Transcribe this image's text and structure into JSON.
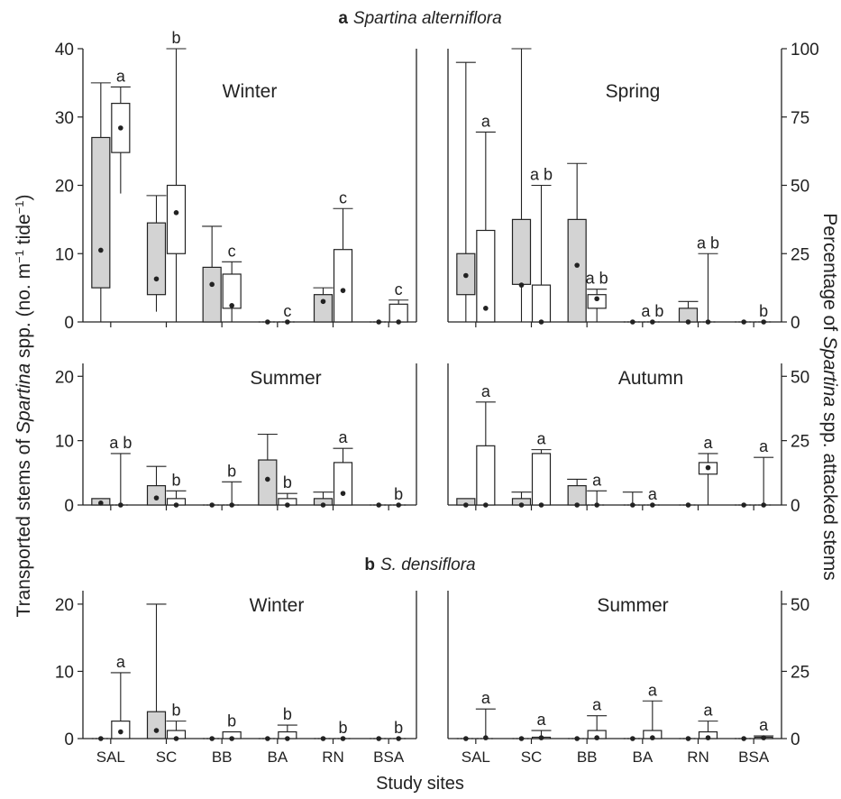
{
  "figure": {
    "section_a": {
      "letter": "a",
      "title": "Spartina alterniflora"
    },
    "section_b": {
      "letter": "b",
      "title": "S. densiflora"
    },
    "ylabel_left_parts": [
      "Transported stems of ",
      "Spartina",
      " spp. (no. m",
      "−1",
      " tide",
      "−1",
      ")"
    ],
    "ylabel_right_parts": [
      "Percentage of ",
      "Spartina",
      " spp. attacked stems"
    ],
    "xlabel": "Study sites",
    "colors": {
      "transported_box": "#d3d3d3",
      "attacked_box": "#ffffff",
      "stroke": "#222222"
    }
  },
  "chart_data": [
    {
      "type": "box",
      "title": "Winter",
      "section": "a",
      "categories": [
        "SAL",
        "SC",
        "BB",
        "BA",
        "RN",
        "BSA"
      ],
      "left_axis": {
        "label": "Transported stems",
        "ylim": [
          0,
          40
        ],
        "ticks": [
          0,
          10,
          20,
          30,
          40
        ]
      },
      "right_axis": {
        "label": "Percentage attacked",
        "ylim": [
          0,
          100
        ],
        "ticks": [
          0,
          25,
          50,
          75,
          100
        ]
      },
      "series": [
        {
          "name": "Transported stems",
          "axis": "left",
          "fill": "#d3d3d3",
          "boxes": [
            {
              "min": 0,
              "q1": 5,
              "q3": 27,
              "max": 35,
              "mean": 10.5
            },
            {
              "min": 1.5,
              "q1": 4,
              "q3": 14.5,
              "max": 18.5,
              "mean": 6.3
            },
            {
              "min": 0,
              "q1": 0,
              "q3": 8,
              "max": 14,
              "mean": 5.5
            },
            {
              "min": 0,
              "q1": 0,
              "q3": 0,
              "max": 0,
              "mean": 0
            },
            {
              "min": 0,
              "q1": 0,
              "q3": 4,
              "max": 5,
              "mean": 3
            },
            {
              "min": 0,
              "q1": 0,
              "q3": 0,
              "max": 0,
              "mean": 0
            }
          ]
        },
        {
          "name": "Attacked stems (%)",
          "axis": "right",
          "fill": "#ffffff",
          "boxes": [
            {
              "min": 47,
              "q1": 62,
              "q3": 80,
              "max": 86,
              "mean": 71
            },
            {
              "min": 0,
              "q1": 25,
              "q3": 50,
              "max": 100,
              "mean": 40
            },
            {
              "min": 0,
              "q1": 5,
              "q3": 17.5,
              "max": 22,
              "mean": 6
            },
            {
              "min": 0,
              "q1": 0,
              "q3": 0,
              "max": 0,
              "mean": 0
            },
            {
              "min": 0,
              "q1": 0,
              "q3": 26.5,
              "max": 41.5,
              "mean": 11.5
            },
            {
              "min": 0,
              "q1": 0,
              "q3": 6.5,
              "max": 8,
              "mean": 0
            }
          ],
          "letters": [
            "a",
            "b",
            "c",
            "c",
            "c",
            "c"
          ]
        }
      ]
    },
    {
      "type": "box",
      "title": "Spring",
      "section": "a",
      "categories": [
        "SAL",
        "SC",
        "BB",
        "BA",
        "RN",
        "BSA"
      ],
      "left_axis": {
        "label": "Transported stems",
        "ylim": [
          0,
          40
        ],
        "ticks": [
          0,
          10,
          20,
          30,
          40
        ]
      },
      "right_axis": {
        "label": "Percentage attacked",
        "ylim": [
          0,
          100
        ],
        "ticks": [
          0,
          25,
          50,
          75,
          100
        ]
      },
      "series": [
        {
          "name": "Transported stems",
          "axis": "left",
          "fill": "#d3d3d3",
          "boxes": [
            {
              "min": 0,
              "q1": 4,
              "q3": 10,
              "max": 38,
              "mean": 6.8
            },
            {
              "min": 0,
              "q1": 5.5,
              "q3": 15,
              "max": 40,
              "mean": 5.4
            },
            {
              "min": 0,
              "q1": 0,
              "q3": 15,
              "max": 23.2,
              "mean": 8.3
            },
            {
              "min": 0,
              "q1": 0,
              "q3": 0,
              "max": 0,
              "mean": 0
            },
            {
              "min": 0,
              "q1": 0,
              "q3": 2,
              "max": 3,
              "mean": 0
            },
            {
              "min": 0,
              "q1": 0,
              "q3": 0,
              "max": 0,
              "mean": 0
            }
          ]
        },
        {
          "name": "Attacked stems (%)",
          "axis": "right",
          "fill": "#ffffff",
          "boxes": [
            {
              "min": 0,
              "q1": 0,
              "q3": 33.5,
              "max": 69.5,
              "mean": 5
            },
            {
              "min": 0,
              "q1": 0,
              "q3": 13.5,
              "max": 50,
              "mean": 0
            },
            {
              "min": 0,
              "q1": 5,
              "q3": 10,
              "max": 12,
              "mean": 8.5
            },
            {
              "min": 0,
              "q1": 0,
              "q3": 0,
              "max": 0,
              "mean": 0
            },
            {
              "min": 0,
              "q1": 0,
              "q3": 0,
              "max": 25,
              "mean": 0
            },
            {
              "min": 0,
              "q1": 0,
              "q3": 0,
              "max": 0,
              "mean": 0
            }
          ],
          "letters": [
            "a",
            "a b",
            "a b",
            "a b",
            "a b",
            "b"
          ]
        }
      ]
    },
    {
      "type": "box",
      "title": "Summer",
      "section": "a",
      "categories": [
        "SAL",
        "SC",
        "BB",
        "BA",
        "RN",
        "BSA"
      ],
      "left_axis": {
        "label": "Transported stems",
        "ylim": [
          0,
          22
        ],
        "ticks": [
          0,
          10,
          20
        ]
      },
      "right_axis": {
        "label": "Percentage attacked",
        "ylim": [
          0,
          55
        ],
        "ticks": [
          0,
          25,
          50
        ]
      },
      "series": [
        {
          "name": "Transported stems",
          "axis": "left",
          "fill": "#d3d3d3",
          "boxes": [
            {
              "min": 0,
              "q1": 0,
              "q3": 1,
              "max": 1,
              "mean": 0.3
            },
            {
              "min": 0,
              "q1": 0,
              "q3": 3,
              "max": 6,
              "mean": 1.1
            },
            {
              "min": 0,
              "q1": 0,
              "q3": 0,
              "max": 0,
              "mean": 0
            },
            {
              "min": 0,
              "q1": 0,
              "q3": 7,
              "max": 11,
              "mean": 4
            },
            {
              "min": 0,
              "q1": 0,
              "q3": 1,
              "max": 2,
              "mean": 0
            },
            {
              "min": 0,
              "q1": 0,
              "q3": 0,
              "max": 0,
              "mean": 0
            }
          ]
        },
        {
          "name": "Attacked stems (%)",
          "axis": "right",
          "fill": "#ffffff",
          "boxes": [
            {
              "min": 0,
              "q1": 0,
              "q3": 0,
              "max": 20,
              "mean": 0
            },
            {
              "min": 0,
              "q1": 0,
              "q3": 2.5,
              "max": 5.5,
              "mean": 0
            },
            {
              "min": 0,
              "q1": 0,
              "q3": 0,
              "max": 9,
              "mean": 0
            },
            {
              "min": 0,
              "q1": 0,
              "q3": 2.5,
              "max": 4.5,
              "mean": 0
            },
            {
              "min": 0,
              "q1": 0,
              "q3": 16.5,
              "max": 22,
              "mean": 4.5
            },
            {
              "min": 0,
              "q1": 0,
              "q3": 0,
              "max": 0,
              "mean": 0
            }
          ],
          "letters": [
            "a b",
            "b",
            "b",
            "b",
            "a",
            "b"
          ]
        }
      ]
    },
    {
      "type": "box",
      "title": "Autumn",
      "section": "a",
      "categories": [
        "SAL",
        "SC",
        "BB",
        "BA",
        "RN",
        "BSA"
      ],
      "left_axis": {
        "label": "Transported stems",
        "ylim": [
          0,
          22
        ],
        "ticks": [
          0,
          10,
          20
        ]
      },
      "right_axis": {
        "label": "Percentage attacked",
        "ylim": [
          0,
          55
        ],
        "ticks": [
          0,
          25,
          50
        ]
      },
      "series": [
        {
          "name": "Transported stems",
          "axis": "left",
          "fill": "#d3d3d3",
          "boxes": [
            {
              "min": 0,
              "q1": 0,
              "q3": 1,
              "max": 1,
              "mean": 0
            },
            {
              "min": 0,
              "q1": 0,
              "q3": 1,
              "max": 2,
              "mean": 0
            },
            {
              "min": 0,
              "q1": 0,
              "q3": 3,
              "max": 4,
              "mean": 0
            },
            {
              "min": 0,
              "q1": 0,
              "q3": 0,
              "max": 2,
              "mean": 0
            },
            {
              "min": 0,
              "q1": 0,
              "q3": 0,
              "max": 0,
              "mean": 0
            },
            {
              "min": 0,
              "q1": 0,
              "q3": 0,
              "max": 0,
              "mean": 0
            }
          ]
        },
        {
          "name": "Attacked stems (%)",
          "axis": "right",
          "fill": "#ffffff",
          "boxes": [
            {
              "min": 0,
              "q1": 0,
              "q3": 23,
              "max": 40,
              "mean": 0
            },
            {
              "min": 0,
              "q1": 0,
              "q3": 20,
              "max": 21.5,
              "mean": 0
            },
            {
              "min": 0,
              "q1": 0,
              "q3": 0,
              "max": 5.5,
              "mean": 0
            },
            {
              "min": 0,
              "q1": 0,
              "q3": 0,
              "max": 0,
              "mean": 0
            },
            {
              "min": 0,
              "q1": 12,
              "q3": 16.5,
              "max": 20,
              "mean": 14.5
            },
            {
              "min": 0,
              "q1": 0,
              "q3": 0,
              "max": 18.5,
              "mean": 0
            }
          ],
          "letters": [
            "a",
            "a",
            "a",
            "a",
            "a",
            "a"
          ]
        }
      ]
    },
    {
      "type": "box",
      "title": "Winter",
      "section": "b",
      "categories": [
        "SAL",
        "SC",
        "BB",
        "BA",
        "RN",
        "BSA"
      ],
      "left_axis": {
        "label": "Transported stems",
        "ylim": [
          0,
          22
        ],
        "ticks": [
          0,
          10,
          20
        ]
      },
      "right_axis": {
        "label": "Percentage attacked",
        "ylim": [
          0,
          55
        ],
        "ticks": [
          0,
          25,
          50
        ]
      },
      "series": [
        {
          "name": "Transported stems",
          "axis": "left",
          "fill": "#d3d3d3",
          "boxes": [
            {
              "min": 0,
              "q1": 0,
              "q3": 0,
              "max": 0,
              "mean": 0
            },
            {
              "min": 0,
              "q1": 0,
              "q3": 4,
              "max": 20,
              "mean": 1.2
            },
            {
              "min": 0,
              "q1": 0,
              "q3": 0,
              "max": 0,
              "mean": 0
            },
            {
              "min": 0,
              "q1": 0,
              "q3": 0,
              "max": 0,
              "mean": 0
            },
            {
              "min": 0,
              "q1": 0,
              "q3": 0,
              "max": 0,
              "mean": 0
            },
            {
              "min": 0,
              "q1": 0,
              "q3": 0,
              "max": 0,
              "mean": 0
            }
          ]
        },
        {
          "name": "Attacked stems (%)",
          "axis": "right",
          "fill": "#ffffff",
          "boxes": [
            {
              "min": 0,
              "q1": 0,
              "q3": 6.5,
              "max": 24.5,
              "mean": 2.5
            },
            {
              "min": 0,
              "q1": 0,
              "q3": 3,
              "max": 6.5,
              "mean": 0
            },
            {
              "min": 0,
              "q1": 0,
              "q3": 2.5,
              "max": 2.5,
              "mean": 0
            },
            {
              "min": 0,
              "q1": 0,
              "q3": 2.5,
              "max": 5,
              "mean": 0
            },
            {
              "min": 0,
              "q1": 0,
              "q3": 0,
              "max": 0,
              "mean": 0
            },
            {
              "min": 0,
              "q1": 0,
              "q3": 0,
              "max": 0,
              "mean": 0
            }
          ],
          "letters": [
            "a",
            "b",
            "b",
            "b",
            "b",
            "b"
          ]
        }
      ]
    },
    {
      "type": "box",
      "title": "Summer",
      "section": "b",
      "categories": [
        "SAL",
        "SC",
        "BB",
        "BA",
        "RN",
        "BSA"
      ],
      "left_axis": {
        "label": "Transported stems",
        "ylim": [
          0,
          22
        ],
        "ticks": [
          0,
          10,
          20
        ]
      },
      "right_axis": {
        "label": "Percentage attacked",
        "ylim": [
          0,
          55
        ],
        "ticks": [
          0,
          25,
          50
        ]
      },
      "series": [
        {
          "name": "Transported stems",
          "axis": "left",
          "fill": "#d3d3d3",
          "boxes": [
            {
              "min": 0,
              "q1": 0,
              "q3": 0,
              "max": 0,
              "mean": 0
            },
            {
              "min": 0,
              "q1": 0,
              "q3": 0,
              "max": 0,
              "mean": 0
            },
            {
              "min": 0,
              "q1": 0,
              "q3": 0,
              "max": 0,
              "mean": 0
            },
            {
              "min": 0,
              "q1": 0,
              "q3": 0,
              "max": 0,
              "mean": 0
            },
            {
              "min": 0,
              "q1": 0,
              "q3": 0,
              "max": 0,
              "mean": 0
            },
            {
              "min": 0,
              "q1": 0,
              "q3": 0,
              "max": 0,
              "mean": 0
            }
          ]
        },
        {
          "name": "Attacked stems (%)",
          "axis": "right",
          "fill": "#ffffff",
          "boxes": [
            {
              "min": 0,
              "q1": 0,
              "q3": 0,
              "max": 11,
              "mean": 0.3
            },
            {
              "min": 0,
              "q1": 0,
              "q3": 0.5,
              "max": 3,
              "mean": 0.3
            },
            {
              "min": 0,
              "q1": 0,
              "q3": 3,
              "max": 8.5,
              "mean": 0.3
            },
            {
              "min": 0,
              "q1": 0,
              "q3": 3,
              "max": 14,
              "mean": 0.3
            },
            {
              "min": 0,
              "q1": 0,
              "q3": 2.5,
              "max": 6.5,
              "mean": 0.3
            },
            {
              "min": 0,
              "q1": 0,
              "q3": 0.5,
              "max": 1,
              "mean": 0.3
            }
          ],
          "letters": [
            "a",
            "a",
            "a",
            "a",
            "a",
            "a"
          ]
        }
      ]
    }
  ]
}
